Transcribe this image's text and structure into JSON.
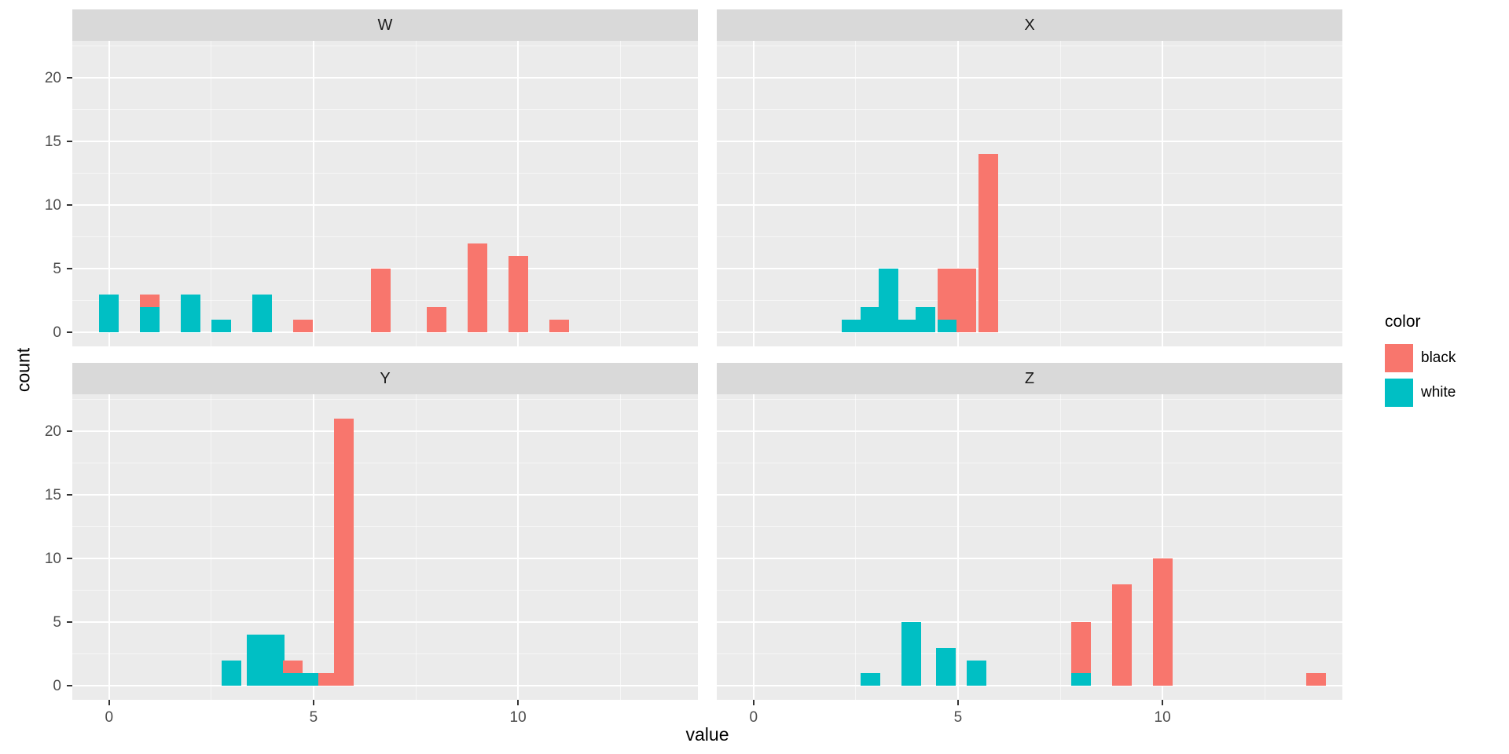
{
  "chart_data": {
    "type": "bar",
    "subtype": "stacked-histogram-faceted",
    "title": "",
    "xlabel": "value",
    "ylabel": "count",
    "x_ticks": [
      0,
      5,
      10
    ],
    "y_ticks": [
      0,
      5,
      10,
      15,
      20
    ],
    "xlim": [
      -0.9,
      14.4
    ],
    "ylim": [
      -1.1,
      22.9
    ],
    "binwidth": 0.48,
    "grid": true,
    "panel_background": "#ebebeb",
    "strip_background": "#d9d9d9",
    "colors": {
      "black": "#F8766D",
      "white": "#00BFC4"
    },
    "legend": {
      "title": "color",
      "position": "right",
      "entries": [
        {
          "label": "black",
          "color": "#F8766D"
        },
        {
          "label": "white",
          "color": "#00BFC4"
        }
      ]
    },
    "facets": [
      {
        "name": "W",
        "bars": [
          {
            "x": 0.0,
            "white": 3,
            "black": 0
          },
          {
            "x": 1.0,
            "white": 2,
            "black": 1
          },
          {
            "x": 2.0,
            "white": 3,
            "black": 0
          },
          {
            "x": 2.75,
            "white": 1,
            "black": 0
          },
          {
            "x": 3.75,
            "white": 3,
            "black": 0
          },
          {
            "x": 4.75,
            "white": 0,
            "black": 1
          },
          {
            "x": 6.65,
            "white": 0,
            "black": 5
          },
          {
            "x": 8.0,
            "white": 0,
            "black": 2
          },
          {
            "x": 9.0,
            "white": 0,
            "black": 7
          },
          {
            "x": 10.0,
            "white": 0,
            "black": 6
          },
          {
            "x": 11.0,
            "white": 0,
            "black": 1
          }
        ]
      },
      {
        "name": "X",
        "bars": [
          {
            "x": 2.4,
            "white": 1,
            "black": 0
          },
          {
            "x": 2.85,
            "white": 2,
            "black": 0
          },
          {
            "x": 3.3,
            "white": 5,
            "black": 0
          },
          {
            "x": 3.75,
            "white": 1,
            "black": 0
          },
          {
            "x": 4.2,
            "white": 2,
            "black": 0
          },
          {
            "x": 4.75,
            "white": 1,
            "black": 4
          },
          {
            "x": 5.2,
            "white": 0,
            "black": 5
          },
          {
            "x": 5.75,
            "white": 0,
            "black": 14
          }
        ]
      },
      {
        "name": "Y",
        "bars": [
          {
            "x": 3.0,
            "white": 2,
            "black": 0
          },
          {
            "x": 3.6,
            "white": 4,
            "black": 0
          },
          {
            "x": 4.05,
            "white": 4,
            "black": 0
          },
          {
            "x": 4.5,
            "white": 1,
            "black": 1
          },
          {
            "x": 4.95,
            "white": 1,
            "black": 0
          },
          {
            "x": 5.35,
            "white": 0,
            "black": 1
          },
          {
            "x": 5.75,
            "white": 0,
            "black": 21
          }
        ]
      },
      {
        "name": "Z",
        "bars": [
          {
            "x": 2.85,
            "white": 1,
            "black": 0
          },
          {
            "x": 3.85,
            "white": 5,
            "black": 0
          },
          {
            "x": 4.7,
            "white": 3,
            "black": 0
          },
          {
            "x": 5.45,
            "white": 2,
            "black": 0
          },
          {
            "x": 8.0,
            "white": 1,
            "black": 4
          },
          {
            "x": 9.0,
            "white": 0,
            "black": 8
          },
          {
            "x": 10.0,
            "white": 0,
            "black": 10
          },
          {
            "x": 13.75,
            "white": 0,
            "black": 1
          }
        ]
      }
    ]
  }
}
